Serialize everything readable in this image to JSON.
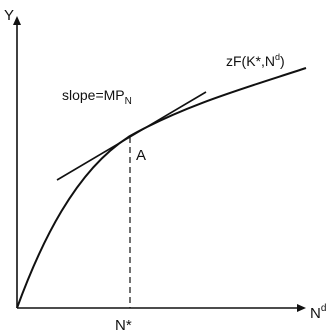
{
  "axes": {
    "y_label": "Y",
    "x_label_main": "N",
    "x_label_sup": "d"
  },
  "curve": {
    "label_main": "zF(K*,N",
    "label_sup": "d",
    "label_close": ")"
  },
  "tangent": {
    "label_main": "slope=MP",
    "label_sub": "N"
  },
  "point": {
    "label": "A"
  },
  "x_marker": {
    "label": "N*"
  },
  "colors": {
    "ink": "#111111",
    "background": "#ffffff"
  }
}
